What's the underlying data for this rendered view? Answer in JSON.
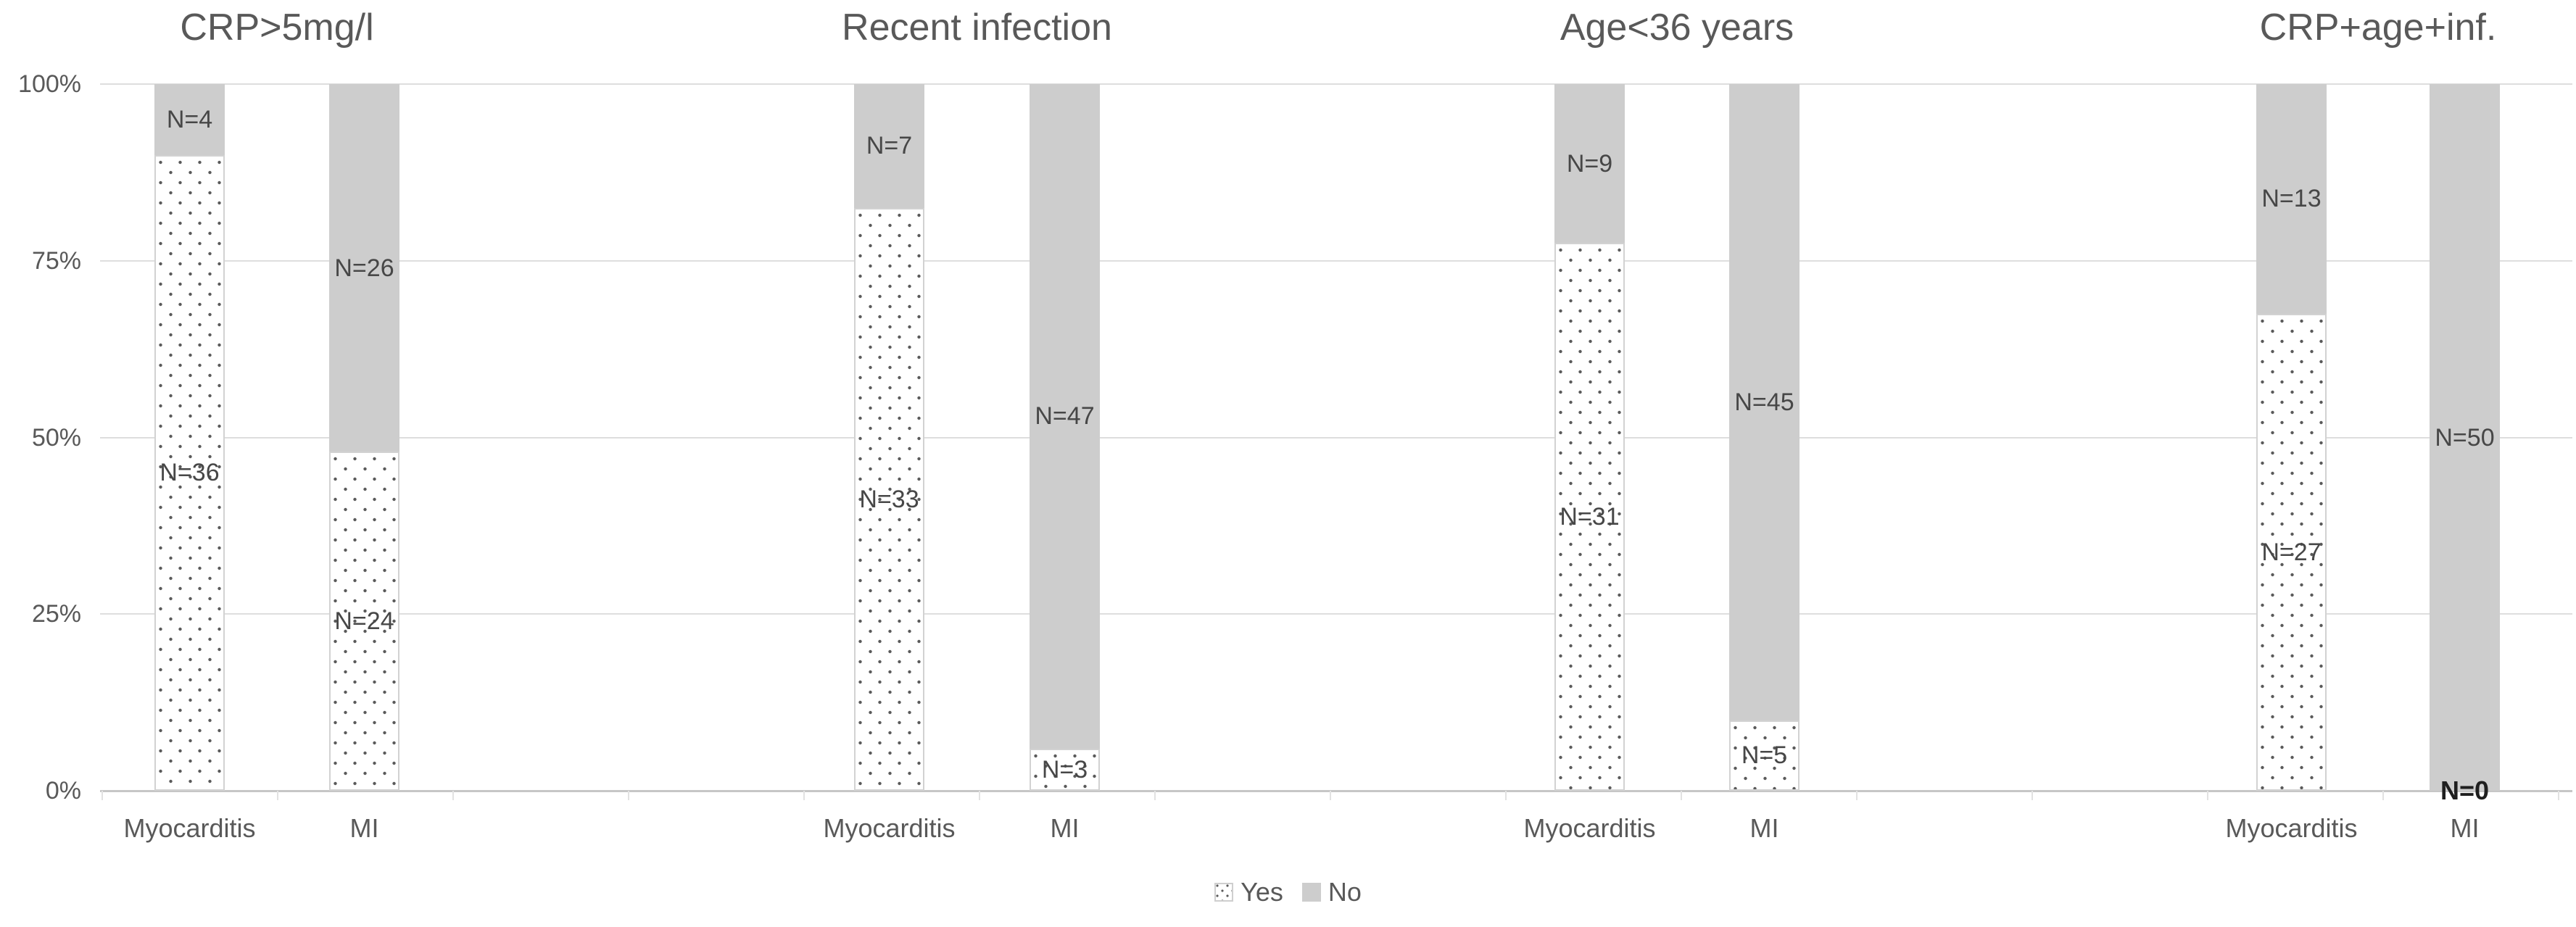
{
  "chart_data": {
    "type": "bar",
    "subtype": "stacked-100-percent",
    "grid": "horizontal",
    "ylim": [
      0,
      100
    ],
    "y_tick_labels": [
      "100%",
      "75%",
      "50%",
      "25%",
      "0%"
    ],
    "legend": {
      "position": "bottom-center",
      "items": [
        {
          "series": "yes",
          "label": "Yes",
          "swatch": "dotted-pattern"
        },
        {
          "series": "no",
          "label": "No",
          "swatch": "solid-gray"
        }
      ]
    },
    "groups": [
      {
        "title": "CRP>5mg/l",
        "bars": [
          {
            "category": "Myocarditis",
            "segments": [
              {
                "series": "Yes",
                "count": 36,
                "pct": 90,
                "label": "N=36"
              },
              {
                "series": "No",
                "count": 4,
                "pct": 10,
                "label": "N=4"
              }
            ]
          },
          {
            "category": "MI",
            "segments": [
              {
                "series": "Yes",
                "count": 24,
                "pct": 48,
                "label": "N=24"
              },
              {
                "series": "No",
                "count": 26,
                "pct": 52,
                "label": "N=26"
              }
            ]
          }
        ]
      },
      {
        "title": "Recent infection",
        "bars": [
          {
            "category": "Myocarditis",
            "segments": [
              {
                "series": "Yes",
                "count": 33,
                "pct": 82.5,
                "label": "N=33"
              },
              {
                "series": "No",
                "count": 7,
                "pct": 17.5,
                "label": "N=7"
              }
            ]
          },
          {
            "category": "MI",
            "segments": [
              {
                "series": "Yes",
                "count": 3,
                "pct": 6,
                "label": "N=3"
              },
              {
                "series": "No",
                "count": 47,
                "pct": 94,
                "label": "N=47"
              }
            ]
          }
        ]
      },
      {
        "title": "Age<36 years",
        "bars": [
          {
            "category": "Myocarditis",
            "segments": [
              {
                "series": "Yes",
                "count": 31,
                "pct": 77.5,
                "label": "N=31"
              },
              {
                "series": "No",
                "count": 9,
                "pct": 22.5,
                "label": "N=9"
              }
            ]
          },
          {
            "category": "MI",
            "segments": [
              {
                "series": "Yes",
                "count": 5,
                "pct": 10,
                "label": "N=5"
              },
              {
                "series": "No",
                "count": 45,
                "pct": 90,
                "label": "N=45"
              }
            ]
          }
        ]
      },
      {
        "title": "CRP+age+inf.",
        "bars": [
          {
            "category": "Myocarditis",
            "segments": [
              {
                "series": "Yes",
                "count": 27,
                "pct": 67.5,
                "label": "N=27"
              },
              {
                "series": "No",
                "count": 13,
                "pct": 32.5,
                "label": "N=13"
              }
            ]
          },
          {
            "category": "MI",
            "segments": [
              {
                "series": "Yes",
                "count": 0,
                "pct": 0,
                "label": "N=0",
                "bold": true
              },
              {
                "series": "No",
                "count": 50,
                "pct": 100,
                "label": "N=50"
              }
            ]
          }
        ]
      }
    ],
    "colors": {
      "yes_fill": "#ffffff",
      "yes_dots": "#595959",
      "yes_border": "#d2d2d2",
      "no_fill": "#cdcdcd",
      "gridline": "#dedede",
      "axis_line": "#c6c6c6",
      "axis_text": "#595959",
      "label_text": "#474747",
      "bold_label_text": "#1f1f1f"
    }
  }
}
